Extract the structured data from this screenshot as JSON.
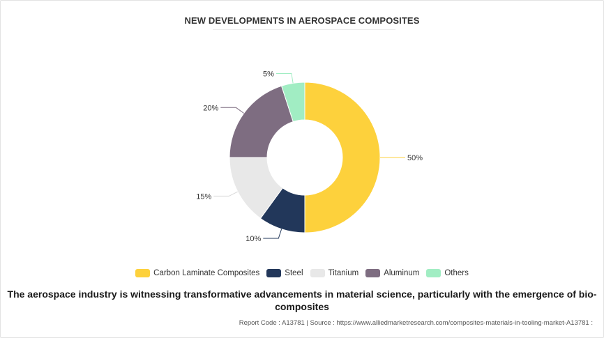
{
  "chart_data": {
    "type": "pie",
    "style": "donut",
    "title": "NEW DEVELOPMENTS IN AEROSPACE COMPOSITES",
    "legend_position": "bottom",
    "slices": [
      {
        "label": "Carbon Laminate Composites",
        "value": 50,
        "value_label": "50%",
        "color": "#FDD13C"
      },
      {
        "label": "Steel",
        "value": 10,
        "value_label": "10%",
        "color": "#22375A"
      },
      {
        "label": "Titanium",
        "value": 15,
        "value_label": "15%",
        "color": "#E8E8E8"
      },
      {
        "label": "Aluminum",
        "value": 20,
        "value_label": "20%",
        "color": "#7E6D81"
      },
      {
        "label": "Others",
        "value": 5,
        "value_label": "5%",
        "color": "#A1EDC3"
      }
    ]
  },
  "caption": "The aerospace industry is witnessing transformative advancements in material science, particularly with the emergence of bio-composites",
  "source": "Report Code : A13781  |  Source : https://www.alliedmarketresearch.com/composites-materials-in-tooling-market-A13781 :"
}
